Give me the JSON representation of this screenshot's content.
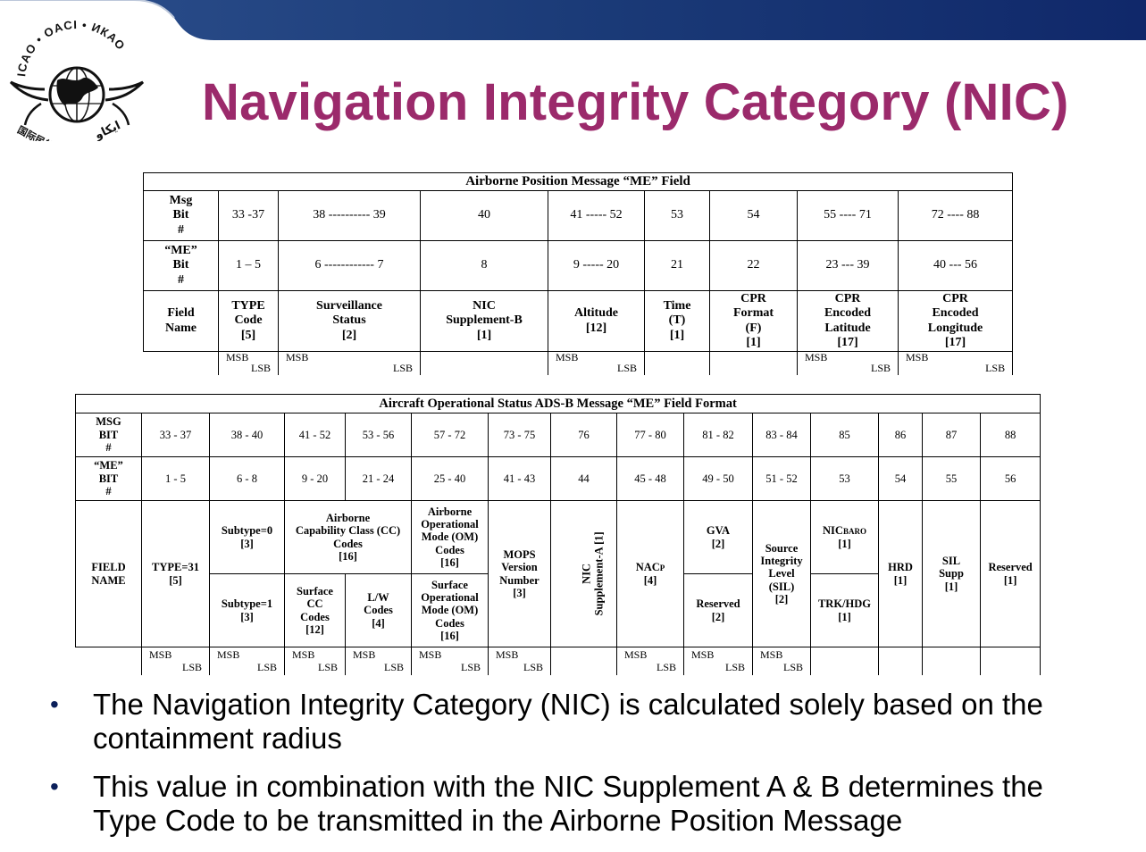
{
  "logo": {
    "text": "ICAO • OACI • ИКАО",
    "chinese": "国际民航组织",
    "arabic": "ايكاو"
  },
  "title": "Navigation Integrity Category (NIC)",
  "colors": {
    "title": "#9b2a6b",
    "banner": "#16366e",
    "bullet": "#0b1f5a"
  },
  "table1": {
    "caption": "Airborne Position Message “ME” Field",
    "rows": [
      {
        "header": [
          "Msg",
          "Bit",
          "#"
        ],
        "cells": [
          "33 -37",
          "38 ---------- 39",
          "40",
          "41 ----- 52",
          "53",
          "54",
          "55 ---- 71",
          "72 ---- 88"
        ]
      },
      {
        "header": [
          "“ME”",
          "Bit",
          "#"
        ],
        "cells": [
          "1 – 5",
          "6 ------------ 7",
          "8",
          "9 ----- 20",
          "21",
          "22",
          "23 --- 39",
          "40 --- 56"
        ]
      }
    ],
    "field_name_label": [
      "Field",
      "Name"
    ],
    "fields": [
      [
        "TYPE",
        "Code",
        "[5]"
      ],
      [
        "Surveillance",
        "Status",
        "[2]"
      ],
      [
        "NIC",
        "Supplement-B",
        "[1]"
      ],
      [
        "Altitude",
        "[12]"
      ],
      [
        "Time",
        "(T)",
        "[1]"
      ],
      [
        "CPR",
        "Format",
        "(F)",
        "[1]"
      ],
      [
        "CPR",
        "Encoded",
        "Latitude",
        "[17]"
      ],
      [
        "CPR",
        "Encoded",
        "Longitude",
        "[17]"
      ]
    ],
    "msb": "MSB",
    "lsb": "LSB"
  },
  "table2": {
    "caption": "Aircraft Operational Status ADS-B Message “ME” Field Format",
    "msg_bit_label": [
      "MSG",
      "BIT",
      "#"
    ],
    "me_bit_label": [
      "“ME”",
      "BIT",
      "#"
    ],
    "msg_bits": [
      "33 - 37",
      "38 - 40",
      "41 - 52",
      "53 - 56",
      "57 - 72",
      "73 - 75",
      "76",
      "77 - 80",
      "81 - 82",
      "83 - 84",
      "85",
      "86",
      "87",
      "88"
    ],
    "me_bits": [
      "1 - 5",
      "6 - 8",
      "9 - 20",
      "21 - 24",
      "25 - 40",
      "41 - 43",
      "44",
      "45 - 48",
      "49 - 50",
      "51 - 52",
      "53",
      "54",
      "55",
      "56"
    ],
    "field_name_label": [
      "FIELD",
      "NAME"
    ],
    "type31": [
      "TYPE=31",
      "[5]"
    ],
    "subtype0": [
      "Subtype=0",
      "[3]"
    ],
    "subtype1": [
      "Subtype=1",
      "[3]"
    ],
    "airborne_cc": [
      "Airborne",
      "Capability Class (CC)",
      "Codes",
      "[16]"
    ],
    "surface_cc": [
      "Surface",
      "CC",
      "Codes",
      "[12]"
    ],
    "lw_codes": [
      "L/W",
      "Codes",
      "[4]"
    ],
    "airborne_om": [
      "Airborne",
      "Operational",
      "Mode (OM)",
      "Codes",
      "[16]"
    ],
    "surface_om": [
      "Surface",
      "Operational",
      "Mode (OM)",
      "Codes",
      "[16]"
    ],
    "mops": [
      "MOPS",
      "Version",
      "Number",
      "[3]"
    ],
    "nic_supp_a": [
      "NIC",
      "Supplement-A",
      "[1]"
    ],
    "nacp": {
      "main": "NAC",
      "sub": "P",
      "bits": "[4]"
    },
    "gva": [
      "GVA",
      "[2]"
    ],
    "reserved2": [
      "Reserved",
      "[2]"
    ],
    "sil": [
      "Source",
      "Integrity",
      "Level",
      "(SIL)",
      "[2]"
    ],
    "nicbaro": {
      "main": "NIC",
      "sub": "BARO",
      "bits": "[1]"
    },
    "trkhdg": [
      "TRK/HDG",
      "[1]"
    ],
    "hrd": [
      "HRD",
      "[1]"
    ],
    "silsupp": [
      "SIL",
      "Supp",
      "[1]"
    ],
    "reserved1": [
      "Reserved",
      "[1]"
    ],
    "msb": "MSB",
    "lsb": "LSB"
  },
  "bullets": [
    [
      "The Navigation Integrity Category (NIC) is calculated solely based on the",
      "containment radius"
    ],
    [
      "This value in combination with the NIC Supplement A & B determines the",
      "Type Code to be transmitted in the Airborne Position Message"
    ]
  ]
}
